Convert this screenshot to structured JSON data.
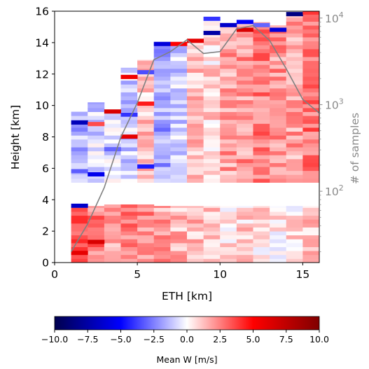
{
  "chart_data": {
    "type": "heatmap",
    "xlabel": "ETH [km]",
    "ylabel": "Height [km]",
    "y2label": "# of samples",
    "xlim": [
      0,
      16
    ],
    "ylim": [
      0,
      16
    ],
    "xticks": [
      "0",
      "5",
      "10",
      "15"
    ],
    "yticks": [
      "0",
      "2",
      "4",
      "6",
      "8",
      "10",
      "12",
      "14",
      "16"
    ],
    "y2scale": "log",
    "y2lim": [
      15,
      12000
    ],
    "y2ticks": [
      {
        "base": "10",
        "exp": "2",
        "value": 100
      },
      {
        "base": "10",
        "exp": "3",
        "value": 1000
      },
      {
        "base": "10",
        "exp": "4",
        "value": 10000
      }
    ],
    "colorbar": {
      "label": "Mean W [m/s]",
      "vmin": -10,
      "vmax": 10,
      "ticks": [
        "−10.0",
        "−7.5",
        "−5.0",
        "−2.5",
        "0.0",
        "2.5",
        "5.0",
        "7.5",
        "10.0"
      ],
      "colors": [
        "#00004d",
        "#0000ff",
        "#ffffff",
        "#ff0000",
        "#800000"
      ]
    },
    "x_bins": [
      {
        "x0": 1,
        "x1": 2,
        "top_upper": 9.6,
        "bot_upper": 3.6
      },
      {
        "x0": 2,
        "x1": 3,
        "top_upper": 10.2,
        "bot_upper": 3.6
      },
      {
        "x0": 3,
        "x1": 4,
        "top_upper": 9.7,
        "bot_upper": 3.7
      },
      {
        "x0": 4,
        "x1": 5,
        "top_upper": 12.4,
        "bot_upper": 3.7
      },
      {
        "x0": 5,
        "x1": 6,
        "top_upper": 12.9,
        "bot_upper": 3.7
      },
      {
        "x0": 6,
        "x1": 7,
        "top_upper": 14.0,
        "bot_upper": 3.6
      },
      {
        "x0": 7,
        "x1": 8,
        "top_upper": 14.0,
        "bot_upper": 3.6
      },
      {
        "x0": 8,
        "x1": 9,
        "top_upper": 14.2,
        "bot_upper": 3.6
      },
      {
        "x0": 9,
        "x1": 10,
        "top_upper": 15.6,
        "bot_upper": 3.6
      },
      {
        "x0": 10,
        "x1": 11,
        "top_upper": 15.2,
        "bot_upper": 3.6
      },
      {
        "x0": 11,
        "x1": 12,
        "top_upper": 15.3,
        "bot_upper": 3.6
      },
      {
        "x0": 12,
        "x1": 13,
        "top_upper": 15.3,
        "bot_upper": 3.6
      },
      {
        "x0": 13,
        "x1": 14,
        "top_upper": 15.1,
        "bot_upper": 3.6
      },
      {
        "x0": 14,
        "x1": 15,
        "top_upper": 15.8,
        "bot_upper": 3.6
      },
      {
        "x0": 15,
        "x1": 16,
        "top_upper": 16.0,
        "bot_upper": 3.6
      }
    ],
    "upper_band_bottom": 5.1,
    "band_height": 0.25,
    "column_mean_w_upper": [
      -1.5,
      -0.8,
      -0.5,
      -1.0,
      1.2,
      -1.8,
      -1.0,
      1.2,
      0.8,
      1.8,
      2.0,
      2.6,
      2.0,
      1.8,
      2.8
    ],
    "column_mean_w_lower": [
      3.2,
      2.6,
      2.0,
      2.4,
      2.2,
      1.8,
      1.4,
      1.2,
      0.9,
      0.8,
      0.8,
      0.6,
      0.4,
      0.6,
      1.0
    ],
    "highlight_cells": [
      {
        "x": 1,
        "y": 8.8,
        "w": -7.0
      },
      {
        "x": 1,
        "y": 5.7,
        "w": -3.2
      },
      {
        "x": 1,
        "y": 3.5,
        "w": -6.5
      },
      {
        "x": 1,
        "y": 0.5,
        "w": 6.0
      },
      {
        "x": 2,
        "y": 8.7,
        "w": 3.5
      },
      {
        "x": 2,
        "y": 5.5,
        "w": -5.5
      },
      {
        "x": 2,
        "y": 1.2,
        "w": 6.5
      },
      {
        "x": 3,
        "y": 9.5,
        "w": 6.5
      },
      {
        "x": 3,
        "y": 7.1,
        "w": -3.0
      },
      {
        "x": 4,
        "y": 11.7,
        "w": 5.5
      },
      {
        "x": 4,
        "y": 9.3,
        "w": -4.0
      },
      {
        "x": 4,
        "y": 7.9,
        "w": 6.0
      },
      {
        "x": 5,
        "y": 12.0,
        "w": -3.5
      },
      {
        "x": 5,
        "y": 10.0,
        "w": 4.5
      },
      {
        "x": 5,
        "y": 6.0,
        "w": -4.5
      },
      {
        "x": 6,
        "y": 13.8,
        "w": -6.0
      },
      {
        "x": 7,
        "y": 13.8,
        "w": 5.0
      },
      {
        "x": 8,
        "y": 14.0,
        "w": 6.0
      },
      {
        "x": 9,
        "y": 15.4,
        "w": -4.0
      },
      {
        "x": 9,
        "y": 14.5,
        "w": -7.5
      },
      {
        "x": 10,
        "y": 15.0,
        "w": -6.5
      },
      {
        "x": 11,
        "y": 14.7,
        "w": 6.5
      },
      {
        "x": 11,
        "y": 15.2,
        "w": -5.0
      },
      {
        "x": 12,
        "y": 15.0,
        "w": -3.0
      },
      {
        "x": 13,
        "y": 14.7,
        "w": -6.0
      },
      {
        "x": 14,
        "y": 15.7,
        "w": -8.5
      },
      {
        "x": 15,
        "y": 15.8,
        "w": 4.0
      }
    ],
    "samples_series": {
      "x": [
        1,
        2,
        3,
        4,
        5,
        6,
        7,
        8,
        9,
        10,
        11,
        12,
        13,
        14,
        15,
        16
      ],
      "y": [
        20,
        42,
        110,
        420,
        1050,
        3300,
        4100,
        5600,
        3900,
        4100,
        7500,
        8200,
        5500,
        2600,
        1150,
        800
      ]
    }
  }
}
